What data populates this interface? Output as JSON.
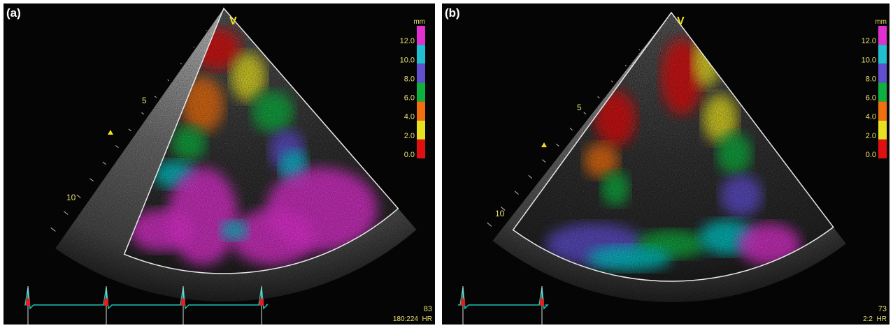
{
  "panels": [
    {
      "label": "(a)",
      "apex_marker": "V",
      "depth_marks": [
        "5",
        "10"
      ],
      "scale": {
        "unit": "mm",
        "labels": [
          "12.0",
          "10.0",
          "8.0",
          "6.0",
          "4.0",
          "2.0",
          "0.0"
        ]
      },
      "heart_rate": "83",
      "frame": "180:224",
      "hr_label": "HR"
    },
    {
      "label": "(b)",
      "apex_marker": "V",
      "depth_marks": [
        "5",
        "10"
      ],
      "scale": {
        "unit": "mm",
        "labels": [
          "12.0",
          "10.0",
          "8.0",
          "6.0",
          "4.0",
          "2.0",
          "0.0"
        ]
      },
      "heart_rate": "73",
      "frame": "2:2",
      "hr_label": "HR"
    }
  ]
}
